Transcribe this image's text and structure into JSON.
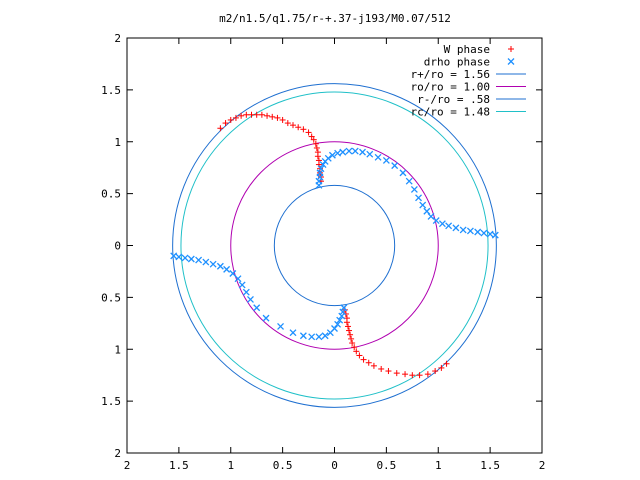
{
  "chart_data": {
    "type": "scatter",
    "title": "m2/n1.5/q1.75/r-+.37-j193/M0.07/512",
    "xlabel": "",
    "ylabel": "",
    "xlim": [
      -2,
      2
    ],
    "ylim": [
      -2,
      2
    ],
    "x_tick_labels": [
      "2",
      "1.5",
      "1",
      "0.5",
      "0",
      "0.5",
      "1",
      "1.5",
      "2"
    ],
    "y_tick_labels": [
      "2",
      "1.5",
      "1",
      "0.5",
      "0",
      "0.5",
      "1",
      "1.5",
      "2"
    ],
    "grid": false,
    "legend_position": "top-right",
    "series": [
      {
        "name": "W phase",
        "kind": "points",
        "marker": "+",
        "color": "#ff0000",
        "points": [
          [
            -1.1,
            1.13
          ],
          [
            -1.05,
            1.18
          ],
          [
            -1.0,
            1.21
          ],
          [
            -0.95,
            1.23
          ],
          [
            -0.9,
            1.25
          ],
          [
            -0.85,
            1.26
          ],
          [
            -0.8,
            1.26
          ],
          [
            -0.75,
            1.26
          ],
          [
            -0.7,
            1.26
          ],
          [
            -0.65,
            1.25
          ],
          [
            -0.6,
            1.24
          ],
          [
            -0.55,
            1.23
          ],
          [
            -0.5,
            1.21
          ],
          [
            -0.45,
            1.18
          ],
          [
            -0.4,
            1.16
          ],
          [
            -0.35,
            1.14
          ],
          [
            -0.3,
            1.12
          ],
          [
            -0.25,
            1.09
          ],
          [
            -0.22,
            1.05
          ],
          [
            -0.2,
            1.02
          ],
          [
            -0.18,
            0.98
          ],
          [
            -0.17,
            0.94
          ],
          [
            -0.16,
            0.9
          ],
          [
            -0.16,
            0.86
          ],
          [
            -0.15,
            0.82
          ],
          [
            -0.15,
            0.78
          ],
          [
            -0.14,
            0.74
          ],
          [
            -0.14,
            0.7
          ],
          [
            -0.13,
            0.66
          ],
          [
            -0.13,
            0.62
          ],
          [
            0.1,
            -0.62
          ],
          [
            0.11,
            -0.66
          ],
          [
            0.12,
            -0.7
          ],
          [
            0.12,
            -0.74
          ],
          [
            0.13,
            -0.78
          ],
          [
            0.14,
            -0.82
          ],
          [
            0.15,
            -0.86
          ],
          [
            0.16,
            -0.9
          ],
          [
            0.17,
            -0.94
          ],
          [
            0.19,
            -0.98
          ],
          [
            0.21,
            -1.02
          ],
          [
            0.24,
            -1.06
          ],
          [
            0.28,
            -1.1
          ],
          [
            0.33,
            -1.13
          ],
          [
            0.38,
            -1.16
          ],
          [
            0.45,
            -1.19
          ],
          [
            0.52,
            -1.21
          ],
          [
            0.6,
            -1.23
          ],
          [
            0.68,
            -1.24
          ],
          [
            0.75,
            -1.25
          ],
          [
            0.82,
            -1.25
          ],
          [
            0.9,
            -1.24
          ],
          [
            0.97,
            -1.21
          ],
          [
            1.03,
            -1.18
          ],
          [
            1.08,
            -1.14
          ]
        ]
      },
      {
        "name": "drho phase",
        "kind": "points",
        "marker": "x",
        "color": "#1e90ff",
        "points": [
          [
            -0.15,
            0.58
          ],
          [
            -0.15,
            0.62
          ],
          [
            -0.14,
            0.66
          ],
          [
            -0.14,
            0.7
          ],
          [
            -0.13,
            0.74
          ],
          [
            -0.11,
            0.78
          ],
          [
            -0.09,
            0.81
          ],
          [
            -0.06,
            0.84
          ],
          [
            -0.02,
            0.87
          ],
          [
            0.03,
            0.89
          ],
          [
            0.08,
            0.9
          ],
          [
            0.14,
            0.91
          ],
          [
            0.2,
            0.91
          ],
          [
            0.27,
            0.9
          ],
          [
            0.34,
            0.88
          ],
          [
            0.42,
            0.85
          ],
          [
            0.5,
            0.82
          ],
          [
            0.58,
            0.77
          ],
          [
            0.66,
            0.7
          ],
          [
            0.72,
            0.62
          ],
          [
            0.77,
            0.54
          ],
          [
            0.81,
            0.46
          ],
          [
            0.85,
            0.39
          ],
          [
            0.89,
            0.33
          ],
          [
            0.93,
            0.28
          ],
          [
            0.98,
            0.24
          ],
          [
            1.04,
            0.21
          ],
          [
            1.1,
            0.19
          ],
          [
            1.17,
            0.17
          ],
          [
            1.24,
            0.15
          ],
          [
            1.31,
            0.14
          ],
          [
            1.38,
            0.13
          ],
          [
            1.44,
            0.12
          ],
          [
            1.5,
            0.11
          ],
          [
            1.55,
            0.1
          ],
          [
            -1.55,
            -0.1
          ],
          [
            -1.5,
            -0.11
          ],
          [
            -1.44,
            -0.12
          ],
          [
            -1.38,
            -0.13
          ],
          [
            -1.31,
            -0.14
          ],
          [
            -1.24,
            -0.16
          ],
          [
            -1.17,
            -0.18
          ],
          [
            -1.1,
            -0.2
          ],
          [
            -1.04,
            -0.23
          ],
          [
            -0.98,
            -0.27
          ],
          [
            -0.93,
            -0.32
          ],
          [
            -0.89,
            -0.38
          ],
          [
            -0.85,
            -0.45
          ],
          [
            -0.81,
            -0.52
          ],
          [
            -0.75,
            -0.6
          ],
          [
            -0.66,
            -0.7
          ],
          [
            -0.52,
            -0.78
          ],
          [
            -0.4,
            -0.84
          ],
          [
            -0.3,
            -0.87
          ],
          [
            -0.22,
            -0.88
          ],
          [
            -0.15,
            -0.88
          ],
          [
            -0.09,
            -0.87
          ],
          [
            -0.04,
            -0.84
          ],
          [
            0.0,
            -0.8
          ],
          [
            0.03,
            -0.76
          ],
          [
            0.05,
            -0.72
          ],
          [
            0.07,
            -0.68
          ],
          [
            0.08,
            -0.64
          ],
          [
            0.09,
            -0.6
          ]
        ]
      },
      {
        "name": "r+/ro = 1.56",
        "kind": "circle",
        "radius": 1.56,
        "color": "#1e6fd0"
      },
      {
        "name": "ro/ro = 1.00",
        "kind": "circle",
        "radius": 1.0,
        "color": "#b000b0"
      },
      {
        "name": "r-/ro = .58",
        "kind": "circle",
        "radius": 0.58,
        "color": "#1e6fd0"
      },
      {
        "name": "rc/ro = 1.48",
        "kind": "circle",
        "radius": 1.48,
        "color": "#20c0c8"
      }
    ]
  }
}
